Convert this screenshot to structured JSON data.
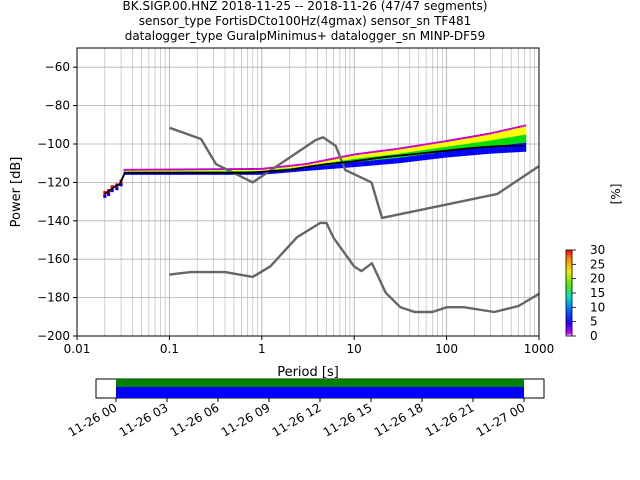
{
  "title_lines": [
    "BK.SIGP.00.HNZ   2018-11-25 -- 2018-11-26  (47/47 segments)",
    "sensor_type FortisDCto100Hz(4gmax) sensor_sn TF481",
    "datalogger_type GuralpMinimus+ datalogger_sn MINP-DF59"
  ],
  "chart_data": {
    "type": "heatmap",
    "xlabel": "Period [s]",
    "ylabel": "Power [dB]",
    "xscale": "log",
    "xlim": [
      0.01,
      1000
    ],
    "ylim": [
      -200,
      -50
    ],
    "xticks": [
      {
        "v": 0.01,
        "label": "0.01"
      },
      {
        "v": 0.1,
        "label": "0.1"
      },
      {
        "v": 1,
        "label": "1"
      },
      {
        "v": 10,
        "label": "10"
      },
      {
        "v": 100,
        "label": "100"
      },
      {
        "v": 1000,
        "label": "1000"
      }
    ],
    "yticks": [
      -200,
      -180,
      -160,
      -140,
      -120,
      -100,
      -80,
      -60
    ],
    "grid": true,
    "mean_curve": [
      [
        0.02,
        -126
      ],
      [
        0.023,
        -124
      ],
      [
        0.026,
        -122
      ],
      [
        0.029,
        -121
      ],
      [
        0.033,
        -115
      ],
      [
        0.1,
        -115
      ],
      [
        0.3,
        -115
      ],
      [
        0.7,
        -115
      ],
      [
        1,
        -114.5
      ],
      [
        2,
        -113.5
      ],
      [
        3,
        -112
      ],
      [
        5,
        -110.5
      ],
      [
        10,
        -109
      ],
      [
        20,
        -107
      ],
      [
        50,
        -105
      ],
      [
        100,
        -103.5
      ],
      [
        200,
        -102
      ],
      [
        400,
        -101
      ],
      [
        700,
        -101
      ]
    ],
    "psd_cloud": {
      "low": [
        [
          0.033,
          -115
        ],
        [
          1,
          -115
        ],
        [
          3,
          -113
        ],
        [
          10,
          -111
        ],
        [
          30,
          -109
        ],
        [
          100,
          -106
        ],
        [
          300,
          -104
        ],
        [
          700,
          -103
        ]
      ],
      "high": [
        [
          0.033,
          -114
        ],
        [
          1,
          -113.5
        ],
        [
          3,
          -111
        ],
        [
          10,
          -106
        ],
        [
          30,
          -103
        ],
        [
          100,
          -99
        ],
        [
          300,
          -95
        ],
        [
          700,
          -91
        ]
      ],
      "spikes_x": [
        420,
        480,
        550,
        620,
        700
      ],
      "spikes_top": -82
    },
    "nlnm": [
      [
        0.1,
        -168
      ],
      [
        0.17,
        -166.7
      ],
      [
        0.4,
        -166.7
      ],
      [
        0.8,
        -169.2
      ],
      [
        1.24,
        -163.7
      ],
      [
        2.4,
        -148.6
      ],
      [
        4.3,
        -141.1
      ],
      [
        5.0,
        -141.1
      ],
      [
        6.0,
        -149
      ],
      [
        10,
        -163.8
      ],
      [
        12,
        -166.2
      ],
      [
        15.6,
        -162.1
      ],
      [
        21.9,
        -177.5
      ],
      [
        31.6,
        -185
      ],
      [
        45,
        -187.5
      ],
      [
        70,
        -187.5
      ],
      [
        101,
        -185
      ],
      [
        154,
        -185
      ],
      [
        328,
        -187.5
      ],
      [
        600,
        -184.4
      ],
      [
        1000,
        -178
      ]
    ],
    "nhnm": [
      [
        0.1,
        -91.5
      ],
      [
        0.22,
        -97.4
      ],
      [
        0.32,
        -110.5
      ],
      [
        0.8,
        -120
      ],
      [
        3.8,
        -98
      ],
      [
        4.6,
        -96.5
      ],
      [
        6.3,
        -101
      ],
      [
        8,
        -113.5
      ],
      [
        15.4,
        -120
      ],
      [
        20,
        -138.5
      ],
      [
        354.8,
        -126
      ],
      [
        1000,
        -111.5
      ]
    ],
    "colorbar": {
      "label": "[%]",
      "min": 0,
      "max": 30,
      "ticks": [
        0,
        5,
        10,
        15,
        20,
        25,
        30
      ]
    },
    "coverage": {
      "tick_labels": [
        "11-26 00",
        "11-26 03",
        "11-26 06",
        "11-26 09",
        "11-26 12",
        "11-26 15",
        "11-26 18",
        "11-26 21",
        "11-27 00"
      ],
      "data_color": "#0000ff",
      "gap_color": "#008000"
    },
    "colors": {
      "mean": "#000000",
      "noise_models": "#666666",
      "grid": "#b0b0b0",
      "cloud_low": "#0000ff",
      "cloud_mid": "#00dd00",
      "cloud_high": "#ffff00",
      "spikes": "#cc00cc"
    }
  }
}
